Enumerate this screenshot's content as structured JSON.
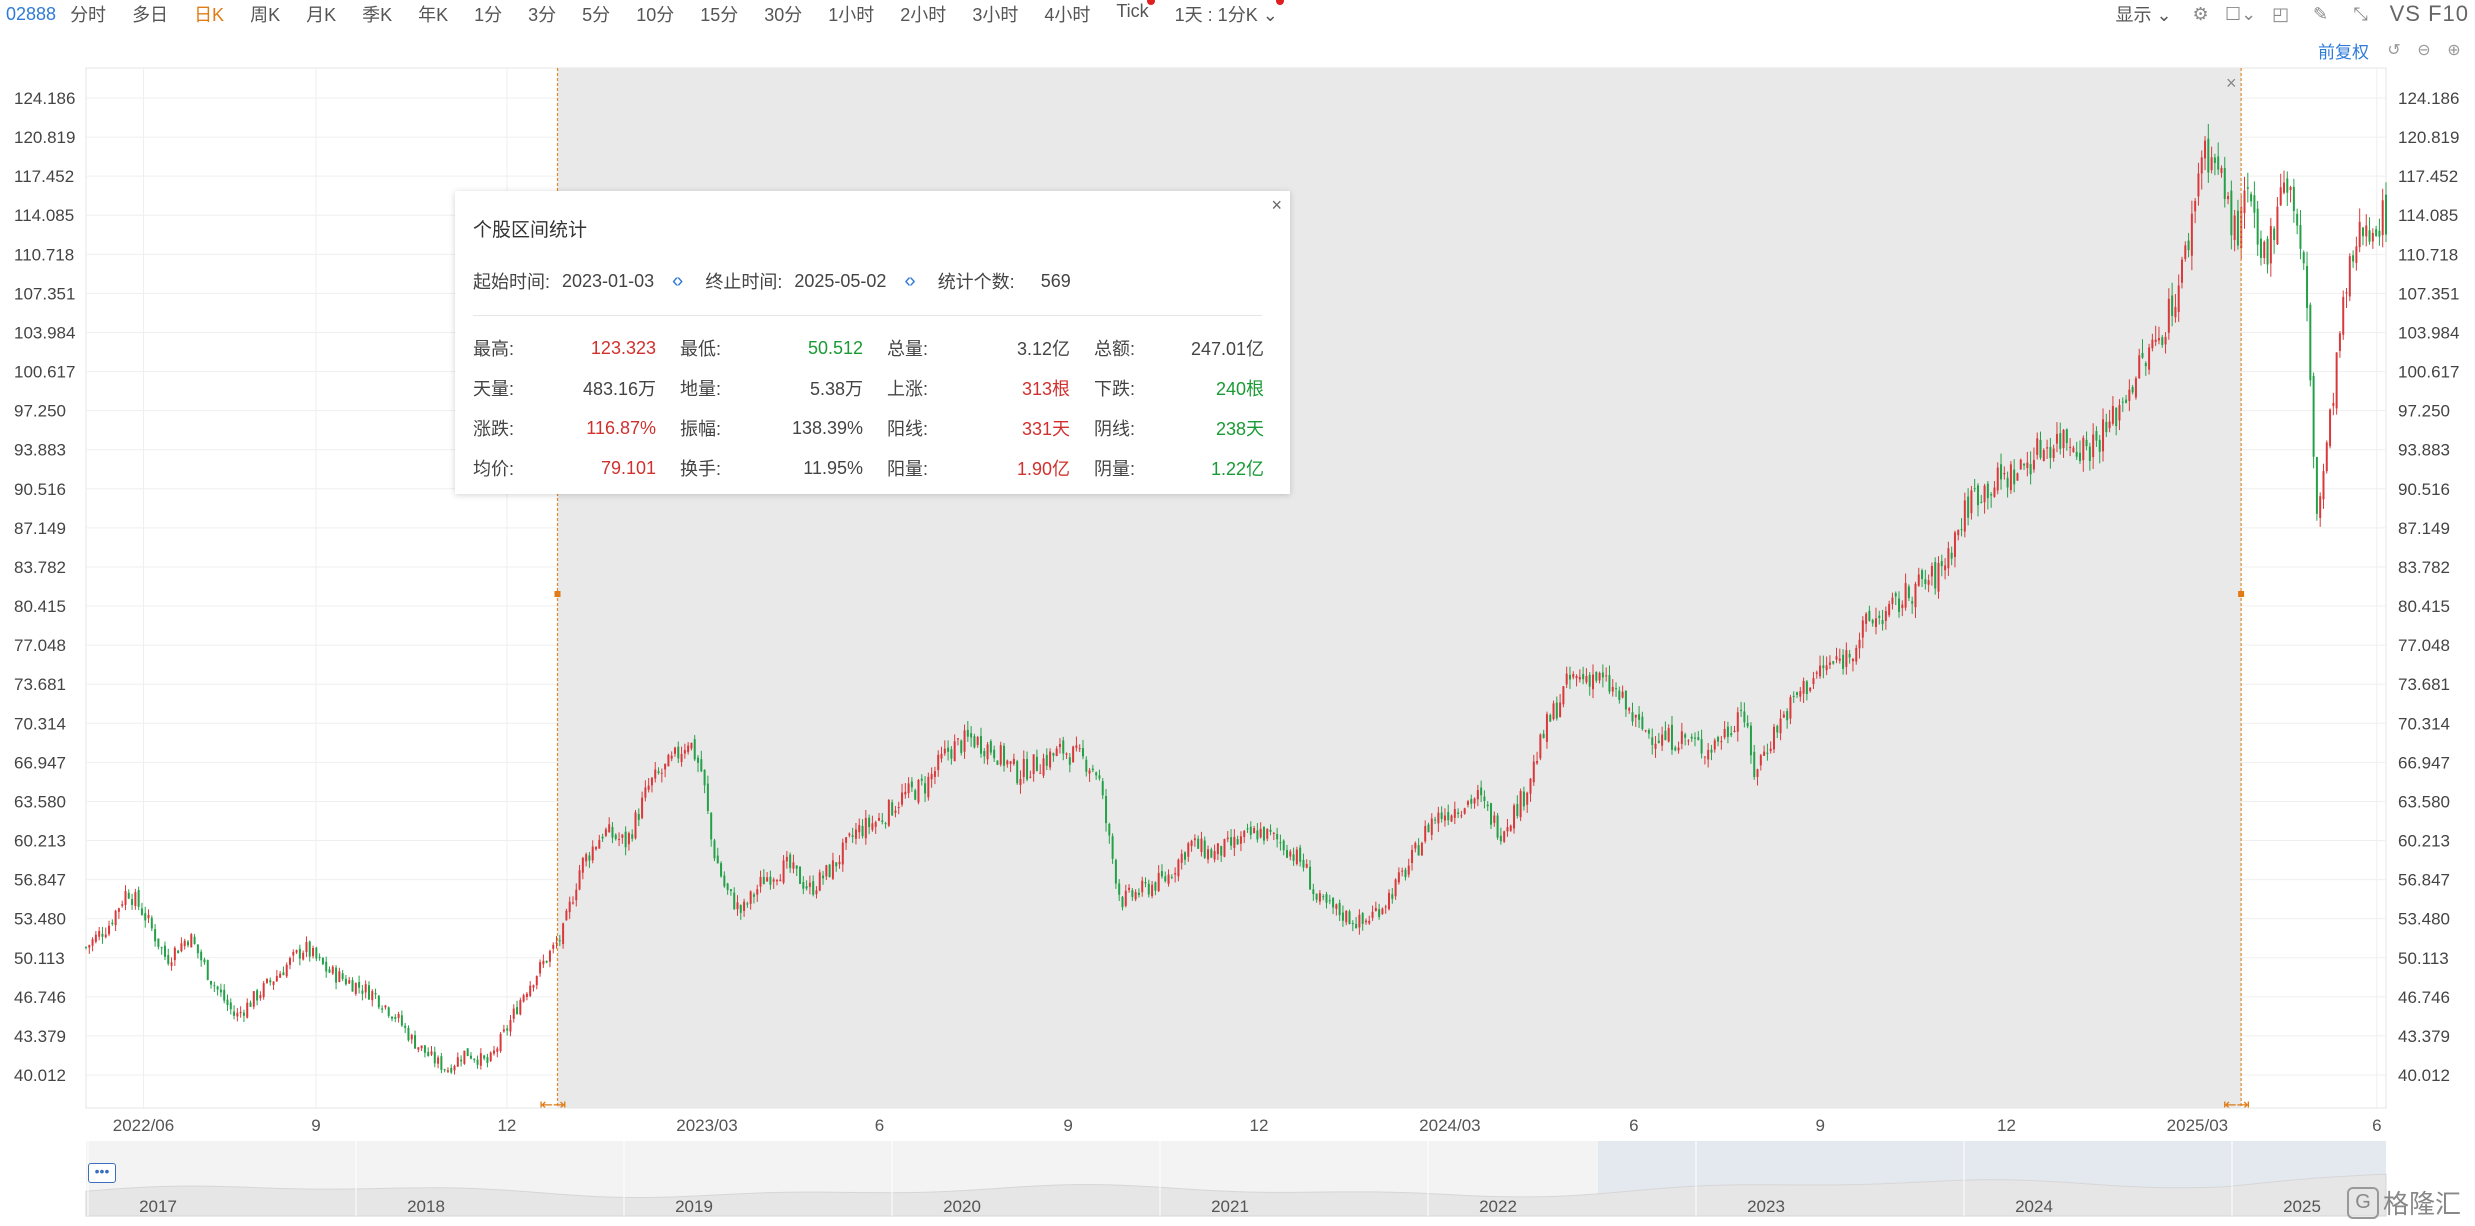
{
  "toolbar": {
    "code": "02888",
    "periods": [
      "分时",
      "多日",
      "日K",
      "周K",
      "月K",
      "季K",
      "年K",
      "1分",
      "3分",
      "5分",
      "10分",
      "15分",
      "30分",
      "1小时",
      "2小时",
      "3小时",
      "4小时",
      "Tick",
      "1天 : 1分K"
    ],
    "active_period": "日K",
    "display_label": "显示",
    "vs_label": "VS",
    "f10_label": "F10",
    "adjust_label": "前复权"
  },
  "popup": {
    "title": "个股区间统计",
    "start_label": "起始时间:",
    "start_value": "2023-01-03",
    "end_label": "终止时间:",
    "end_value": "2025-05-02",
    "count_label": "统计个数:",
    "count_value": "569",
    "stats": [
      {
        "k": "最高:",
        "v": "123.323",
        "c": "red"
      },
      {
        "k": "最低:",
        "v": "50.512",
        "c": "green"
      },
      {
        "k": "总量:",
        "v": "3.12亿",
        "c": "plain"
      },
      {
        "k": "总额:",
        "v": "247.01亿",
        "c": "plain"
      },
      {
        "k": "天量:",
        "v": "483.16万",
        "c": "plain"
      },
      {
        "k": "地量:",
        "v": "5.38万",
        "c": "plain"
      },
      {
        "k": "上涨:",
        "v": "313根",
        "c": "red"
      },
      {
        "k": "下跌:",
        "v": "240根",
        "c": "green"
      },
      {
        "k": "涨跌:",
        "v": "116.87%",
        "c": "red"
      },
      {
        "k": "振幅:",
        "v": "138.39%",
        "c": "plain"
      },
      {
        "k": "阳线:",
        "v": "331天",
        "c": "red"
      },
      {
        "k": "阴线:",
        "v": "238天",
        "c": "green"
      },
      {
        "k": "均价:",
        "v": "79.101",
        "c": "red"
      },
      {
        "k": "换手:",
        "v": "11.95%",
        "c": "plain"
      },
      {
        "k": "阳量:",
        "v": "1.90亿",
        "c": "red"
      },
      {
        "k": "阴量:",
        "v": "1.22亿",
        "c": "green"
      }
    ]
  },
  "chart_data": {
    "type": "candlestick",
    "ylim": [
      37.5,
      126.5
    ],
    "y_ticks": [
      "124.186",
      "120.819",
      "117.452",
      "114.085",
      "110.718",
      "107.351",
      "103.984",
      "100.617",
      "97.250",
      "93.883",
      "90.516",
      "87.149",
      "83.782",
      "80.415",
      "77.048",
      "73.681",
      "70.314",
      "66.947",
      "63.580",
      "60.213",
      "56.847",
      "53.480",
      "50.113",
      "46.746",
      "43.379",
      "40.012"
    ],
    "x_ticks": [
      "2022/06",
      "9",
      "12",
      "2023/03",
      "6",
      "9",
      "12",
      "2024/03",
      "6",
      "9",
      "12",
      "2025/03",
      "6"
    ],
    "x_tick_pos": [
      0.025,
      0.1,
      0.183,
      0.27,
      0.345,
      0.427,
      0.51,
      0.593,
      0.673,
      0.754,
      0.835,
      0.918,
      0.996
    ],
    "selection": {
      "start": 0.205,
      "end": 0.937
    },
    "price_path": [
      [
        0.0,
        51
      ],
      [
        0.01,
        53
      ],
      [
        0.018,
        56
      ],
      [
        0.025,
        54
      ],
      [
        0.035,
        50
      ],
      [
        0.045,
        52
      ],
      [
        0.055,
        48
      ],
      [
        0.065,
        45
      ],
      [
        0.075,
        47
      ],
      [
        0.085,
        49
      ],
      [
        0.095,
        51
      ],
      [
        0.105,
        49
      ],
      [
        0.115,
        48
      ],
      [
        0.125,
        47
      ],
      [
        0.135,
        45
      ],
      [
        0.142,
        43
      ],
      [
        0.15,
        41.5
      ],
      [
        0.157,
        40.5
      ],
      [
        0.165,
        42
      ],
      [
        0.175,
        41
      ],
      [
        0.183,
        44
      ],
      [
        0.19,
        47
      ],
      [
        0.2,
        50
      ],
      [
        0.207,
        52
      ],
      [
        0.215,
        58
      ],
      [
        0.225,
        61
      ],
      [
        0.235,
        60
      ],
      [
        0.245,
        65
      ],
      [
        0.255,
        67
      ],
      [
        0.262,
        69
      ],
      [
        0.268,
        66
      ],
      [
        0.272,
        60
      ],
      [
        0.278,
        56
      ],
      [
        0.285,
        54
      ],
      [
        0.295,
        57
      ],
      [
        0.305,
        58
      ],
      [
        0.315,
        56
      ],
      [
        0.325,
        58
      ],
      [
        0.335,
        61
      ],
      [
        0.345,
        62
      ],
      [
        0.355,
        64
      ],
      [
        0.365,
        65
      ],
      [
        0.375,
        68
      ],
      [
        0.385,
        69
      ],
      [
        0.395,
        68
      ],
      [
        0.405,
        66
      ],
      [
        0.415,
        67
      ],
      [
        0.425,
        68
      ],
      [
        0.435,
        67
      ],
      [
        0.44,
        66
      ],
      [
        0.445,
        60
      ],
      [
        0.45,
        55
      ],
      [
        0.46,
        56
      ],
      [
        0.47,
        57
      ],
      [
        0.48,
        60
      ],
      [
        0.49,
        59
      ],
      [
        0.5,
        60
      ],
      [
        0.51,
        61
      ],
      [
        0.52,
        60
      ],
      [
        0.53,
        58
      ],
      [
        0.535,
        55
      ],
      [
        0.545,
        54
      ],
      [
        0.555,
        53
      ],
      [
        0.565,
        55
      ],
      [
        0.575,
        58
      ],
      [
        0.585,
        62
      ],
      [
        0.595,
        63
      ],
      [
        0.605,
        64
      ],
      [
        0.615,
        61
      ],
      [
        0.625,
        64
      ],
      [
        0.635,
        70
      ],
      [
        0.645,
        74
      ],
      [
        0.655,
        74.5
      ],
      [
        0.665,
        73
      ],
      [
        0.675,
        70
      ],
      [
        0.685,
        69
      ],
      [
        0.695,
        69
      ],
      [
        0.705,
        68
      ],
      [
        0.715,
        70
      ],
      [
        0.72,
        72
      ],
      [
        0.725,
        66
      ],
      [
        0.735,
        70
      ],
      [
        0.745,
        73
      ],
      [
        0.755,
        75
      ],
      [
        0.765,
        76
      ],
      [
        0.775,
        79
      ],
      [
        0.785,
        80
      ],
      [
        0.795,
        82
      ],
      [
        0.805,
        83
      ],
      [
        0.812,
        86
      ],
      [
        0.82,
        90
      ],
      [
        0.83,
        91
      ],
      [
        0.84,
        92
      ],
      [
        0.85,
        94
      ],
      [
        0.86,
        95
      ],
      [
        0.87,
        94
      ],
      [
        0.88,
        96
      ],
      [
        0.89,
        100
      ],
      [
        0.9,
        103
      ],
      [
        0.91,
        108
      ],
      [
        0.915,
        113
      ],
      [
        0.92,
        120
      ],
      [
        0.925,
        119
      ],
      [
        0.93,
        116
      ],
      [
        0.935,
        112
      ],
      [
        0.94,
        116
      ],
      [
        0.945,
        110
      ],
      [
        0.95,
        112
      ],
      [
        0.955,
        118
      ],
      [
        0.96,
        115
      ],
      [
        0.965,
        108
      ],
      [
        0.97,
        88
      ],
      [
        0.975,
        95
      ],
      [
        0.98,
        104
      ],
      [
        0.985,
        110
      ],
      [
        0.99,
        113
      ],
      [
        1.0,
        114
      ]
    ],
    "navigator_years": [
      "2017",
      "2018",
      "2019",
      "2020",
      "2021",
      "2022",
      "2023",
      "2024",
      "2025"
    ]
  }
}
